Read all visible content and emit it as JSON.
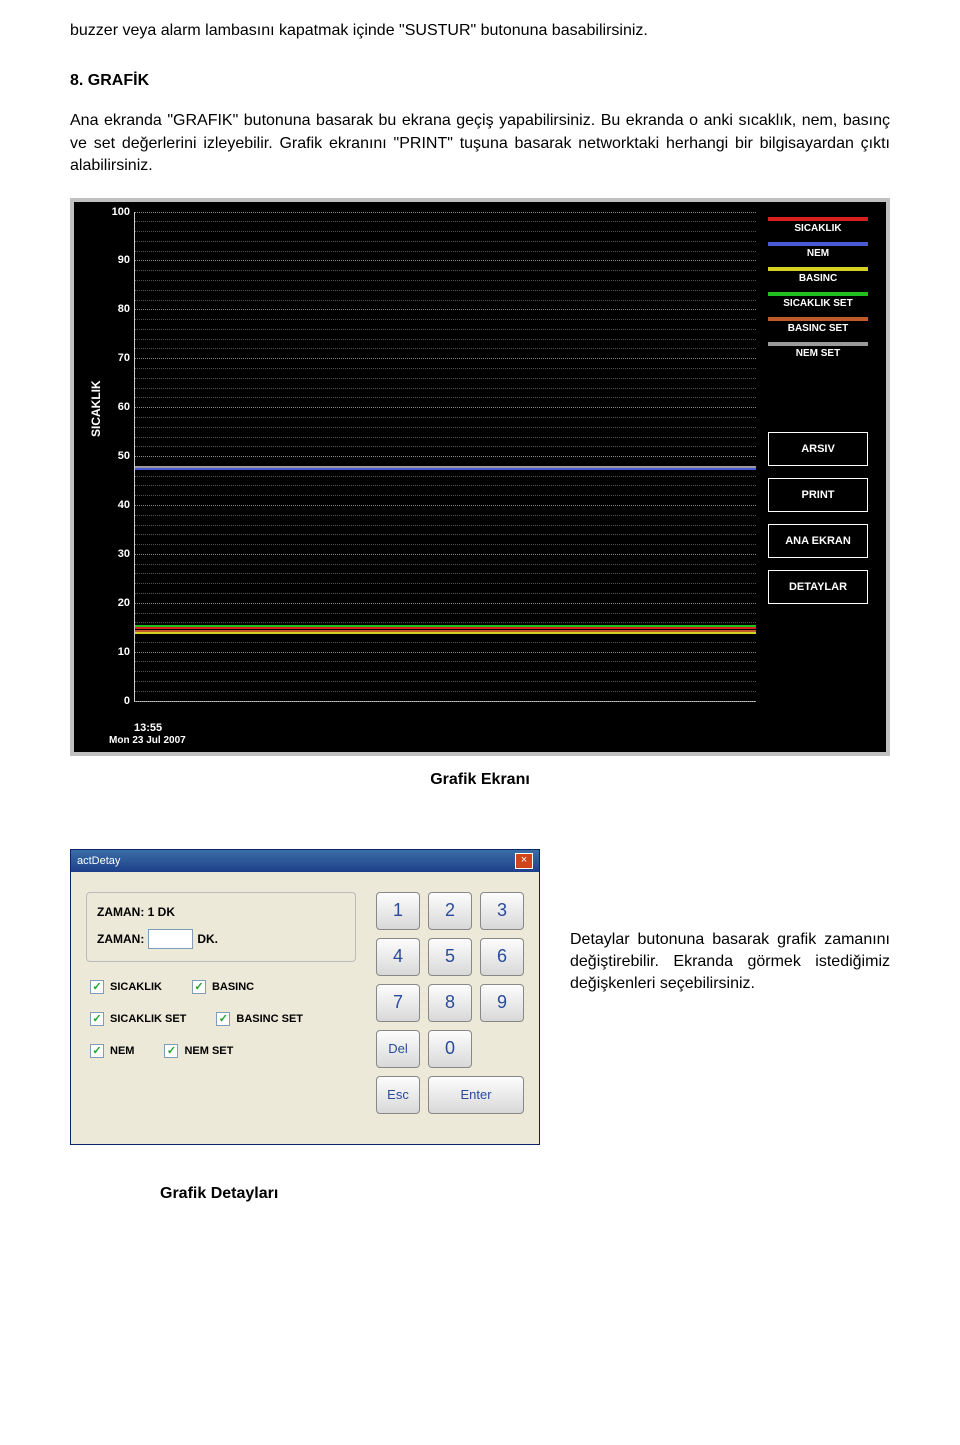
{
  "intro": "buzzer veya alarm lambasını kapatmak içinde \"SUSTUR\" butonuna basabilirsiniz.",
  "section_title": "8. GRAFİK",
  "body": "Ana ekranda \"GRAFIK\" butonuna basarak bu ekrana geçiş yapabilirsiniz. Bu ekranda o anki sıcaklık, nem, basınç ve set değerlerini izleyebilir.  Grafik ekranını \"PRINT\" tuşuna basarak networktaki herhangi bir bilgisayardan çıktı alabilirsiniz.",
  "chart": {
    "y_axis_title": "SICAKLIK",
    "ylim": [
      0,
      100
    ],
    "yticks": [
      0,
      10,
      20,
      30,
      40,
      50,
      60,
      70,
      80,
      90,
      100
    ],
    "minor_per_major": 5,
    "x_time": "13:55",
    "x_date": "Mon 23 Jul 2007",
    "background": "#000000",
    "grid_color": "#888888",
    "tick_color": "#ffffff",
    "series": [
      {
        "name": "SICAKLIK",
        "color": "#d92020",
        "value": 15.0
      },
      {
        "name": "NEM",
        "color": "#4a5ad6",
        "value": 47.5
      },
      {
        "name": "BASINC",
        "color": "#d6d020",
        "value": 14.0
      },
      {
        "name": "SICAKLIK SET",
        "color": "#20c020",
        "value": 15.5
      },
      {
        "name": "BASINC SET",
        "color": "#c05a2a",
        "value": 14.5
      },
      {
        "name": "NEM SET",
        "color": "#9a9a9a",
        "value": 48.0
      }
    ],
    "buttons": [
      "ARSIV",
      "PRINT",
      "ANA EKRAN",
      "DETAYLAR"
    ]
  },
  "caption": "Grafik Ekranı",
  "dialog": {
    "title": "actDetay",
    "zaman_label": "ZAMAN: 1 DK",
    "zaman_row_prefix": "ZAMAN:",
    "zaman_row_suffix": "DK.",
    "checks": [
      [
        "SICAKLIK",
        "BASINC"
      ],
      [
        "SICAKLIK SET",
        "BASINC SET"
      ],
      [
        "NEM",
        "NEM SET"
      ]
    ],
    "keys": [
      [
        "1",
        "2",
        "3"
      ],
      [
        "4",
        "5",
        "6"
      ],
      [
        "7",
        "8",
        "9"
      ],
      [
        "Del",
        "0"
      ],
      [
        "Esc",
        "Enter"
      ]
    ]
  },
  "side_note": "Detaylar butonuna basarak grafik zamanını değiştirebilir. Ekranda görmek istediğimiz değişkenleri seçebilirsiniz.",
  "caption2": "Grafik Detayları"
}
